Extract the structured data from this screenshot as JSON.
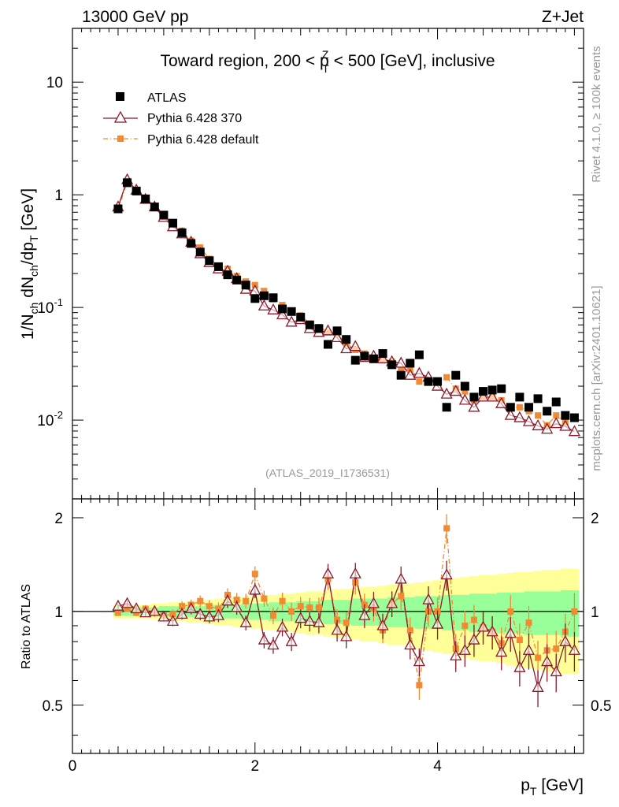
{
  "header": {
    "left": "13000 GeV pp",
    "right": "Z+Jet"
  },
  "title": {
    "prefix": "Toward region, 200 < p",
    "sup": "Z",
    "sub": "T",
    "suffix": " < 500 [GeV], inclusive"
  },
  "side_labels": {
    "rivet": "Rivet 4.1.0, ≥ 100k events",
    "mcplots": "mcplots.cern.ch [arXiv:2401.10621]"
  },
  "analysis_id": "(ATLAS_2019_I1736531)",
  "axis_labels": {
    "y_top": "1/N_ch dN_ch/dp_T [GeV]",
    "y_bottom": "Ratio to ATLAS",
    "x": "p_T [GeV]"
  },
  "colors": {
    "atlas": "#000000",
    "py370": "#8b1a2b",
    "pydefault": "#f28a33",
    "band_yellow": "#ffff99",
    "band_green": "#99ff99"
  },
  "chart_data": {
    "type": "scatter",
    "x": [
      0.5,
      0.6,
      0.7,
      0.8,
      0.9,
      1.0,
      1.1,
      1.2,
      1.3,
      1.4,
      1.5,
      1.6,
      1.7,
      1.8,
      1.9,
      2.0,
      2.1,
      2.2,
      2.3,
      2.4,
      2.5,
      2.6,
      2.7,
      2.8,
      2.9,
      3.0,
      3.1,
      3.2,
      3.3,
      3.4,
      3.5,
      3.6,
      3.7,
      3.8,
      3.9,
      4.0,
      4.1,
      4.2,
      4.3,
      4.4,
      4.5,
      4.6,
      4.7,
      4.8,
      4.9,
      5.0,
      5.1,
      5.2,
      5.3,
      5.4,
      5.5
    ],
    "xlim": [
      0,
      5.6
    ],
    "x_ticks": [
      "0",
      "2",
      "4"
    ],
    "top_ylim": [
      0.002,
      30
    ],
    "top_yscale": "log",
    "top_y_ticks": [
      "10",
      "1",
      "10^-1",
      "10^-2"
    ],
    "ratio_ylim": [
      0.35,
      2.3
    ],
    "ratio_y_ticks": [
      "0.5",
      "1",
      "2"
    ],
    "legend": [
      "ATLAS",
      "Pythia 6.428 370",
      "Pythia 6.428 default"
    ],
    "legend_position": "top-left",
    "series": [
      {
        "name": "ATLAS",
        "marker": "filled-square",
        "values": [
          0.75,
          1.28,
          1.08,
          0.92,
          0.78,
          0.66,
          0.56,
          0.46,
          0.37,
          0.31,
          0.26,
          0.23,
          0.195,
          0.175,
          0.158,
          0.12,
          0.127,
          0.122,
          0.097,
          0.092,
          0.082,
          0.07,
          0.065,
          0.047,
          0.062,
          0.052,
          0.034,
          0.037,
          0.035,
          0.039,
          0.031,
          0.025,
          0.032,
          0.038,
          0.022,
          0.022,
          0.013,
          0.025,
          0.02,
          0.016,
          0.018,
          0.0185,
          0.019,
          0.013,
          0.016,
          0.013,
          0.0155,
          0.012,
          0.0145,
          0.011,
          0.0105
        ]
      },
      {
        "name": "Pythia 6.428 370",
        "marker": "open-triangle",
        "values": [
          0.78,
          1.36,
          1.1,
          0.91,
          0.78,
          0.63,
          0.52,
          0.45,
          0.38,
          0.3,
          0.25,
          0.22,
          0.21,
          0.18,
          0.145,
          0.14,
          0.103,
          0.095,
          0.086,
          0.074,
          0.078,
          0.065,
          0.06,
          0.062,
          0.054,
          0.043,
          0.045,
          0.036,
          0.037,
          0.035,
          0.033,
          0.032,
          0.025,
          0.026,
          0.024,
          0.02,
          0.017,
          0.018,
          0.015,
          0.013,
          0.016,
          0.016,
          0.014,
          0.011,
          0.0105,
          0.0097,
          0.0089,
          0.0083,
          0.0093,
          0.0088,
          0.0079
        ]
      },
      {
        "name": "Pythia 6.428 default",
        "marker": "filled-square-small",
        "values": [
          0.74,
          1.3,
          1.07,
          0.94,
          0.77,
          0.64,
          0.55,
          0.48,
          0.39,
          0.34,
          0.27,
          0.235,
          0.22,
          0.19,
          0.17,
          0.158,
          0.14,
          0.118,
          0.105,
          0.092,
          0.085,
          0.072,
          0.067,
          0.06,
          0.058,
          0.048,
          0.042,
          0.039,
          0.036,
          0.034,
          0.033,
          0.028,
          0.028,
          0.022,
          0.022,
          0.022,
          0.024,
          0.019,
          0.018,
          0.015,
          0.016,
          0.016,
          0.015,
          0.013,
          0.013,
          0.012,
          0.011,
          0.009,
          0.011,
          0.0095,
          0.0105
        ]
      }
    ],
    "ratio_series": [
      {
        "name": "Pythia 6.428 370",
        "values": [
          1.04,
          1.06,
          1.02,
          0.99,
          1.0,
          0.96,
          0.93,
          0.98,
          1.02,
          0.98,
          0.96,
          0.97,
          1.08,
          1.03,
          0.92,
          1.17,
          0.81,
          0.78,
          0.89,
          0.8,
          0.95,
          0.93,
          0.92,
          1.32,
          0.87,
          0.83,
          1.32,
          0.97,
          1.06,
          0.9,
          1.06,
          1.27,
          0.78,
          0.69,
          1.09,
          0.91,
          1.31,
          0.72,
          0.75,
          0.81,
          0.89,
          0.86,
          0.74,
          0.85,
          0.66,
          0.75,
          0.57,
          0.69,
          0.64,
          0.8,
          0.75
        ]
      },
      {
        "name": "Pythia 6.428 default",
        "values": [
          0.99,
          1.02,
          0.99,
          1.02,
          0.99,
          0.97,
          0.98,
          1.04,
          1.05,
          1.08,
          1.04,
          1.02,
          1.13,
          1.09,
          1.08,
          1.32,
          1.1,
          0.97,
          1.08,
          1.0,
          1.04,
          1.03,
          1.03,
          1.27,
          0.94,
          0.92,
          1.24,
          1.05,
          1.02,
          0.87,
          1.06,
          1.12,
          0.87,
          0.58,
          1.0,
          1.0,
          1.85,
          0.76,
          0.9,
          0.94,
          0.89,
          0.86,
          0.79,
          1.0,
          0.81,
          0.92,
          0.71,
          0.75,
          0.76,
          0.86,
          1.0
        ]
      }
    ],
    "ratio_band_inner_halfwidth": [
      0.03,
      0.03,
      0.03,
      0.03,
      0.03,
      0.04,
      0.04,
      0.04,
      0.04,
      0.04,
      0.05,
      0.05,
      0.05,
      0.05,
      0.06,
      0.06,
      0.06,
      0.07,
      0.07,
      0.07,
      0.08,
      0.08,
      0.08,
      0.09,
      0.09,
      0.09,
      0.1,
      0.1,
      0.1,
      0.1,
      0.11,
      0.11,
      0.11,
      0.12,
      0.12,
      0.12,
      0.13,
      0.13,
      0.13,
      0.14,
      0.14,
      0.14,
      0.15,
      0.15,
      0.15,
      0.16,
      0.16,
      0.16,
      0.16,
      0.17,
      0.17
    ],
    "ratio_band_outer_halfwidth": [
      0.05,
      0.05,
      0.05,
      0.05,
      0.06,
      0.06,
      0.07,
      0.07,
      0.08,
      0.08,
      0.09,
      0.1,
      0.1,
      0.11,
      0.11,
      0.12,
      0.13,
      0.13,
      0.14,
      0.14,
      0.15,
      0.16,
      0.16,
      0.17,
      0.18,
      0.18,
      0.19,
      0.2,
      0.2,
      0.21,
      0.22,
      0.22,
      0.23,
      0.24,
      0.25,
      0.26,
      0.27,
      0.28,
      0.29,
      0.3,
      0.31,
      0.31,
      0.32,
      0.33,
      0.34,
      0.34,
      0.35,
      0.36,
      0.36,
      0.37,
      0.37
    ]
  }
}
